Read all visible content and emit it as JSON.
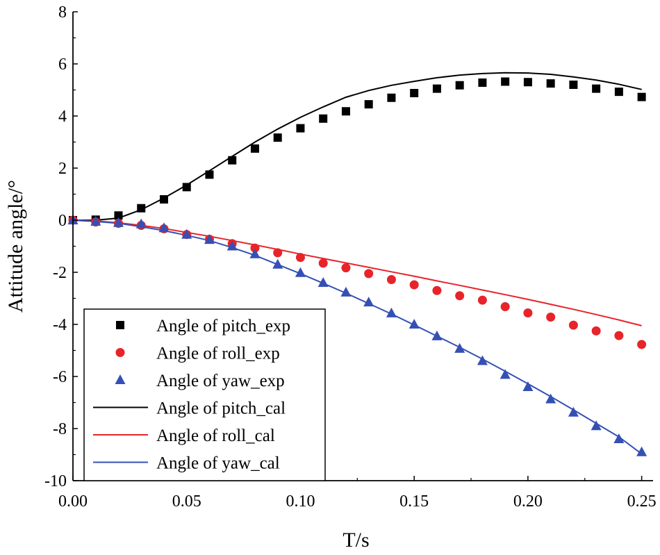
{
  "chart_data": {
    "type": "line",
    "title": "",
    "xlabel": "T/s",
    "ylabel": "Attitude angle/°",
    "xlim": [
      0.0,
      0.255
    ],
    "ylim": [
      -10,
      8
    ],
    "xticks": [
      0.0,
      0.05,
      0.1,
      0.15,
      0.2,
      0.25
    ],
    "xtick_labels": [
      "0.00",
      "0.05",
      "0.10",
      "0.15",
      "0.20",
      "0.25"
    ],
    "yticks": [
      -10,
      -8,
      -6,
      -4,
      -2,
      0,
      2,
      4,
      6,
      8
    ],
    "ytick_labels": [
      "-10",
      "-8",
      "-6",
      "-4",
      "-2",
      "0",
      "2",
      "4",
      "6",
      "8"
    ],
    "grid": false,
    "legend_position": "bottom-left",
    "scatter_x": [
      0.0,
      0.01,
      0.02,
      0.03,
      0.04,
      0.05,
      0.06,
      0.07,
      0.08,
      0.09,
      0.1,
      0.11,
      0.12,
      0.13,
      0.14,
      0.15,
      0.16,
      0.17,
      0.18,
      0.19,
      0.2,
      0.21,
      0.22,
      0.23,
      0.24,
      0.25
    ],
    "series": [
      {
        "name": "Angle of pitch_exp",
        "kind": "scatter",
        "marker": "square",
        "color": "#000000",
        "values": [
          0.0,
          0.02,
          0.18,
          0.46,
          0.8,
          1.27,
          1.75,
          2.3,
          2.75,
          3.17,
          3.53,
          3.9,
          4.18,
          4.45,
          4.7,
          4.88,
          5.05,
          5.18,
          5.28,
          5.32,
          5.3,
          5.25,
          5.2,
          5.05,
          4.93,
          4.73
        ]
      },
      {
        "name": "Angle of roll_exp",
        "kind": "scatter",
        "marker": "circle",
        "color": "#e8232a",
        "values": [
          0.0,
          -0.07,
          -0.12,
          -0.2,
          -0.33,
          -0.55,
          -0.73,
          -0.9,
          -1.07,
          -1.25,
          -1.43,
          -1.65,
          -1.83,
          -2.05,
          -2.28,
          -2.48,
          -2.7,
          -2.9,
          -3.07,
          -3.32,
          -3.56,
          -3.72,
          -4.03,
          -4.25,
          -4.43,
          -4.77
        ]
      },
      {
        "name": "Angle of yaw_exp",
        "kind": "scatter",
        "marker": "triangle",
        "color": "#3550b5",
        "values": [
          0.0,
          -0.05,
          -0.1,
          -0.15,
          -0.3,
          -0.55,
          -0.75,
          -1.0,
          -1.3,
          -1.7,
          -2.02,
          -2.4,
          -2.77,
          -3.15,
          -3.57,
          -4.0,
          -4.45,
          -4.93,
          -5.4,
          -5.93,
          -6.4,
          -6.87,
          -7.38,
          -7.9,
          -8.4,
          -8.9
        ]
      },
      {
        "name": "Angle of pitch_cal",
        "kind": "line",
        "color": "#000000",
        "x": [
          0.0,
          0.01,
          0.02,
          0.03,
          0.04,
          0.05,
          0.06,
          0.07,
          0.08,
          0.09,
          0.1,
          0.11,
          0.12,
          0.13,
          0.14,
          0.15,
          0.16,
          0.17,
          0.18,
          0.19,
          0.2,
          0.21,
          0.22,
          0.23,
          0.24,
          0.25
        ],
        "values": [
          0.0,
          0.0,
          0.08,
          0.4,
          0.85,
          1.35,
          1.9,
          2.45,
          3.0,
          3.5,
          3.95,
          4.35,
          4.72,
          4.98,
          5.18,
          5.33,
          5.47,
          5.57,
          5.63,
          5.66,
          5.65,
          5.6,
          5.5,
          5.38,
          5.22,
          5.02
        ]
      },
      {
        "name": "Angle of roll_cal",
        "kind": "line",
        "color": "#e8232a",
        "x": [
          0.0,
          0.01,
          0.02,
          0.03,
          0.04,
          0.05,
          0.06,
          0.07,
          0.08,
          0.09,
          0.1,
          0.11,
          0.12,
          0.13,
          0.14,
          0.15,
          0.16,
          0.17,
          0.18,
          0.19,
          0.2,
          0.21,
          0.22,
          0.23,
          0.24,
          0.25
        ],
        "values": [
          0.0,
          -0.03,
          -0.1,
          -0.2,
          -0.32,
          -0.47,
          -0.62,
          -0.78,
          -0.95,
          -1.12,
          -1.3,
          -1.47,
          -1.64,
          -1.81,
          -1.98,
          -2.15,
          -2.33,
          -2.5,
          -2.68,
          -2.86,
          -3.04,
          -3.23,
          -3.42,
          -3.62,
          -3.83,
          -4.05
        ]
      },
      {
        "name": "Angle of yaw_cal",
        "kind": "line",
        "color": "#3550b5",
        "x": [
          0.0,
          0.01,
          0.02,
          0.03,
          0.04,
          0.05,
          0.06,
          0.07,
          0.08,
          0.09,
          0.1,
          0.11,
          0.12,
          0.13,
          0.14,
          0.15,
          0.16,
          0.17,
          0.18,
          0.19,
          0.2,
          0.21,
          0.22,
          0.23,
          0.24,
          0.25
        ],
        "values": [
          0.0,
          -0.05,
          -0.12,
          -0.25,
          -0.4,
          -0.58,
          -0.78,
          -1.05,
          -1.35,
          -1.7,
          -2.05,
          -2.42,
          -2.8,
          -3.2,
          -3.6,
          -4.02,
          -4.45,
          -4.88,
          -5.33,
          -5.8,
          -6.28,
          -6.77,
          -7.28,
          -7.8,
          -8.32,
          -8.97
        ]
      }
    ]
  }
}
